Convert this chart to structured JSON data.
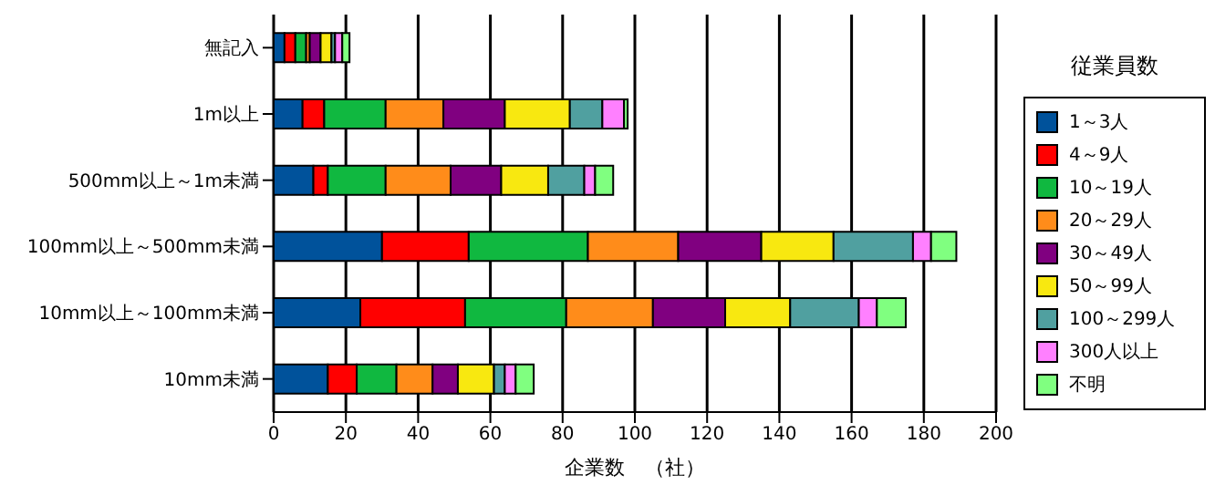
{
  "chart_data": {
    "type": "bar",
    "orientation": "horizontal",
    "stacked": true,
    "xlabel": "企業数　（社）",
    "legend_title": "従業員数",
    "legend": "right",
    "grid": "x",
    "categories": [
      "無記入",
      "1m以上",
      "500mm以上～1m未満",
      "100mm以上～500mm未満",
      "10mm以上～100mm未満",
      "10mm未満"
    ],
    "xlim": [
      0,
      200
    ],
    "xticks": [
      0,
      20,
      40,
      60,
      80,
      100,
      120,
      140,
      160,
      180,
      200
    ],
    "series": [
      {
        "name": "1～3人",
        "color": "#00529b",
        "values": [
          3,
          8,
          11,
          30,
          24,
          15
        ]
      },
      {
        "name": "4～9人",
        "color": "#ff0000",
        "values": [
          3,
          6,
          4,
          24,
          29,
          8
        ]
      },
      {
        "name": "10～19人",
        "color": "#10b840",
        "values": [
          3,
          17,
          16,
          33,
          28,
          11
        ]
      },
      {
        "name": "20～29人",
        "color": "#ff8c1a",
        "values": [
          1,
          16,
          18,
          25,
          24,
          10
        ]
      },
      {
        "name": "30～49人",
        "color": "#800080",
        "values": [
          3,
          17,
          14,
          23,
          20,
          7
        ]
      },
      {
        "name": "50～99人",
        "color": "#f8e810",
        "values": [
          3,
          18,
          13,
          20,
          18,
          10
        ]
      },
      {
        "name": "100～299人",
        "color": "#50a0a0",
        "values": [
          1,
          9,
          10,
          22,
          19,
          3
        ]
      },
      {
        "name": "300人以上",
        "color": "#ff80ff",
        "values": [
          2,
          6,
          3,
          5,
          5,
          3
        ]
      },
      {
        "name": "不明",
        "color": "#80ff80",
        "values": [
          2,
          1,
          5,
          7,
          8,
          5
        ]
      }
    ]
  }
}
